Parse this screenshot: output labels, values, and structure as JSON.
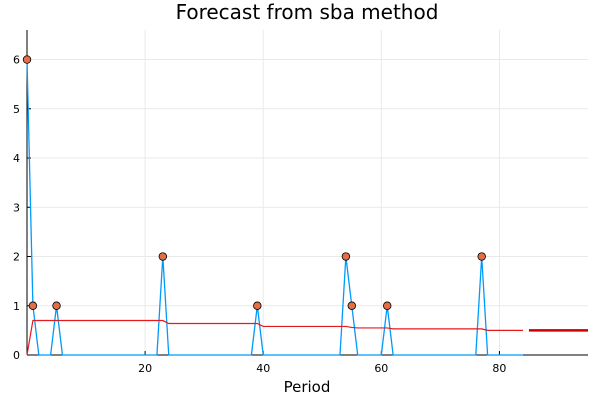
{
  "chart_data": {
    "type": "line",
    "title": "Forecast from sba method",
    "xlabel": "Period",
    "ylabel": "",
    "xlim": [
      0,
      95
    ],
    "ylim": [
      0,
      6.6
    ],
    "xticks": [
      20,
      40,
      60,
      80
    ],
    "yticks": [
      0,
      1,
      2,
      3,
      4,
      5,
      6
    ],
    "grid": true,
    "legend": "none",
    "colors": {
      "actual": "#009AFA",
      "points": "#E26F46",
      "fitted": "#E41A1C",
      "forecast": "#CC0000"
    },
    "series": [
      {
        "kind": "actual-line",
        "x": [
          0,
          1,
          2,
          3,
          4,
          5,
          6,
          7,
          8,
          9,
          10,
          11,
          12,
          13,
          14,
          15,
          16,
          17,
          18,
          19,
          20,
          21,
          22,
          23,
          24,
          25,
          26,
          27,
          28,
          29,
          30,
          31,
          32,
          33,
          34,
          35,
          36,
          37,
          38,
          39,
          40,
          41,
          42,
          43,
          44,
          45,
          46,
          47,
          48,
          49,
          50,
          51,
          52,
          53,
          54,
          55,
          56,
          57,
          58,
          59,
          60,
          61,
          62,
          63,
          64,
          65,
          66,
          67,
          68,
          69,
          70,
          71,
          72,
          73,
          74,
          75,
          76,
          77,
          78,
          79,
          80,
          81,
          82,
          83,
          84
        ],
        "y": [
          6,
          1,
          0,
          0,
          0,
          1,
          0,
          0,
          0,
          0,
          0,
          0,
          0,
          0,
          0,
          0,
          0,
          0,
          0,
          0,
          0,
          0,
          0,
          2,
          0,
          0,
          0,
          0,
          0,
          0,
          0,
          0,
          0,
          0,
          0,
          0,
          0,
          0,
          0,
          1,
          0,
          0,
          0,
          0,
          0,
          0,
          0,
          0,
          0,
          0,
          0,
          0,
          0,
          0,
          2,
          1,
          0,
          0,
          0,
          0,
          0,
          1,
          0,
          0,
          0,
          0,
          0,
          0,
          0,
          0,
          0,
          0,
          0,
          0,
          0,
          0,
          0,
          2,
          0,
          0,
          0,
          0,
          0,
          0,
          0
        ]
      },
      {
        "kind": "actual-points",
        "x": [
          0,
          1,
          5,
          23,
          39,
          54,
          55,
          61,
          77
        ],
        "y": [
          6,
          1,
          1,
          2,
          1,
          2,
          1,
          1,
          2
        ]
      },
      {
        "kind": "fitted",
        "x": [
          0,
          1,
          23,
          24,
          39,
          40,
          54,
          55,
          56,
          61,
          62,
          77,
          78,
          84
        ],
        "y": [
          0,
          0.7,
          0.7,
          0.64,
          0.64,
          0.58,
          0.58,
          0.56,
          0.55,
          0.55,
          0.53,
          0.53,
          0.5,
          0.5
        ]
      },
      {
        "kind": "forecast",
        "x": [
          85,
          95
        ],
        "y": [
          0.5,
          0.5
        ]
      }
    ]
  }
}
